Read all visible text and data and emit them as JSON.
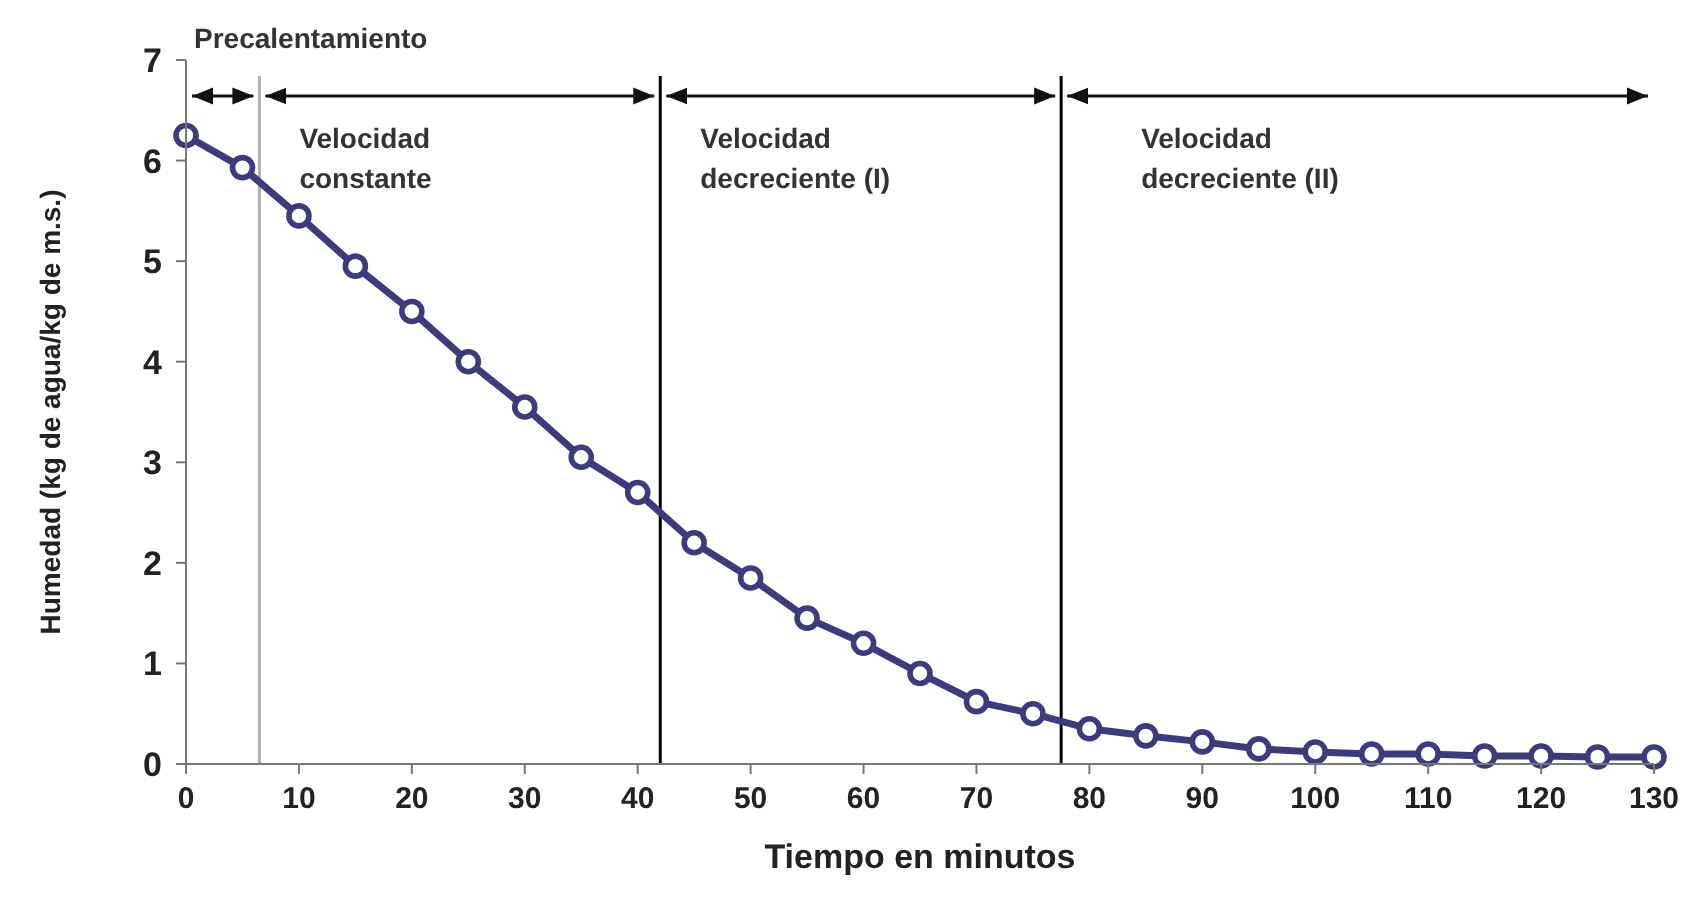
{
  "chart_data": {
    "type": "line",
    "xlabel": "Tiempo en minutos",
    "ylabel": "Humedad (kg de agua/kg de m.s.)",
    "x": [
      0,
      5,
      10,
      15,
      20,
      25,
      30,
      35,
      40,
      45,
      50,
      55,
      60,
      65,
      70,
      75,
      80,
      85,
      90,
      95,
      100,
      105,
      110,
      115,
      120,
      125,
      130
    ],
    "series": [
      {
        "color": "#3d3b7c",
        "values": [
          6.25,
          5.93,
          5.45,
          4.95,
          4.5,
          4.0,
          3.55,
          3.05,
          2.7,
          2.2,
          1.85,
          1.45,
          1.2,
          0.9,
          0.62,
          0.5,
          0.35,
          0.28,
          0.22,
          0.15,
          0.12,
          0.1,
          0.1,
          0.08,
          0.08,
          0.07,
          0.07
        ]
      }
    ],
    "xlim": [
      0,
      130
    ],
    "xticks": [
      0,
      10,
      20,
      30,
      40,
      50,
      60,
      70,
      80,
      90,
      100,
      110,
      120,
      130
    ],
    "ylim": [
      0,
      7
    ],
    "yticks": [
      0,
      1,
      2,
      3,
      4,
      5,
      6,
      7
    ],
    "grid": false,
    "marker": "circle",
    "line_style": "solid",
    "ref_lines": [
      {
        "axis": "x",
        "value": 6.5,
        "color": "#b0b0b0"
      },
      {
        "axis": "x",
        "value": 42,
        "color": "#000000"
      },
      {
        "axis": "x",
        "value": 77.5,
        "color": "#000000"
      }
    ],
    "annotations": [
      "Precalentamiento",
      "Velocidad\nconstante",
      "Velocidad\ndecreciente (I)",
      "Velocidad\ndecreciente (II)"
    ]
  }
}
